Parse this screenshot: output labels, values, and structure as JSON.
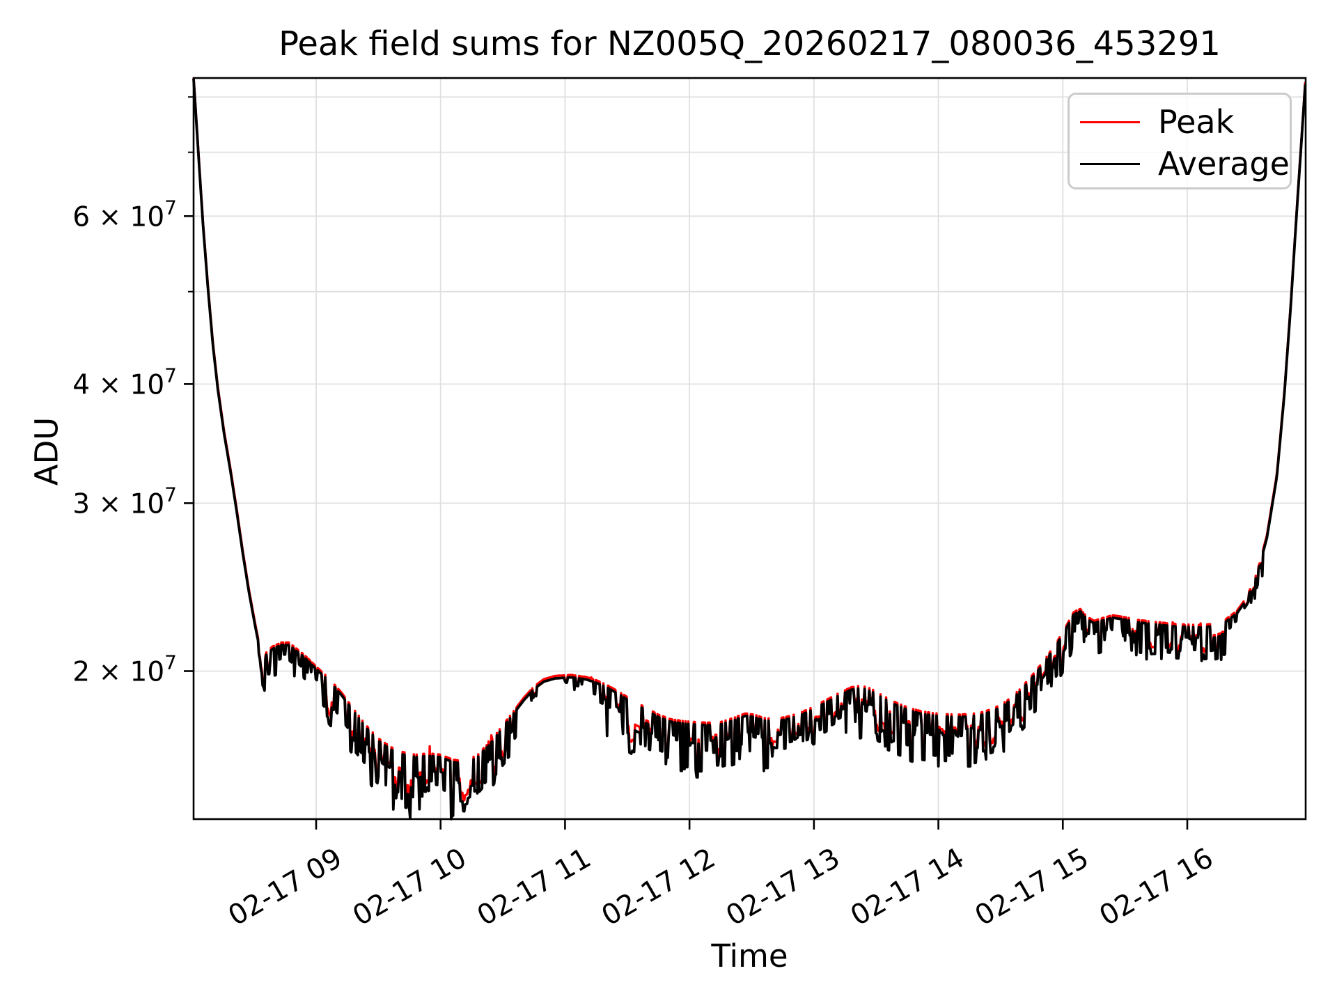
{
  "title": "Peak field sums for NZ005Q_20260217_080036_453291",
  "xlabel": "Time",
  "ylabel": "ADU",
  "legend": {
    "items": [
      {
        "label": "Peak",
        "color": "#ff0000"
      },
      {
        "label": "Average",
        "color": "#000000"
      }
    ]
  },
  "colors": {
    "peak": "#ff0000",
    "average": "#000000",
    "grid": "#e0e0e0",
    "spine": "#000000",
    "background": "#ffffff",
    "legend_border": "#cbcbcb"
  },
  "axes": {
    "x": {
      "start_hour": 8.0152,
      "end_hour": 16.9513,
      "label_rotation_deg": -30,
      "ticks": [
        {
          "hour": 9,
          "label": "02-17 09"
        },
        {
          "hour": 10,
          "label": "02-17 10"
        },
        {
          "hour": 11,
          "label": "02-17 11"
        },
        {
          "hour": 12,
          "label": "02-17 12"
        },
        {
          "hour": 13,
          "label": "02-17 13"
        },
        {
          "hour": 14,
          "label": "02-17 14"
        },
        {
          "hour": 15,
          "label": "02-17 15"
        },
        {
          "hour": 16,
          "label": "02-17 16"
        }
      ]
    },
    "y": {
      "scale": "log",
      "min": 13990000,
      "max": 83750000,
      "major_ticks": [
        {
          "value": 20000000,
          "base": "2 × 10",
          "exp": "7"
        },
        {
          "value": 30000000,
          "base": "3 × 10",
          "exp": "7"
        },
        {
          "value": 40000000,
          "base": "4 × 10",
          "exp": "7"
        },
        {
          "value": 60000000,
          "base": "6 × 10",
          "exp": "7"
        }
      ],
      "minor_tick_values": [
        50000000,
        70000000,
        80000000
      ]
    }
  },
  "chart_data": {
    "type": "line",
    "title": "Peak field sums for NZ005Q_20260217_080036_453291",
    "xlabel": "Time",
    "ylabel": "ADU",
    "x_unit": "time of day on 2026-02-17 (hours)",
    "x_start": "2026-02-17 08:01",
    "x_end": "2026-02-17 16:57",
    "ylim": [
      13990000,
      83750000
    ],
    "grid": "both",
    "legend_position": "upper right",
    "series": [
      {
        "name": "Peak",
        "color": "#ff0000",
        "relation": "upper envelope +0.6%, occasional upward spikes, dips are 78% as deep as Average"
      },
      {
        "name": "Average",
        "color": "#000000",
        "relation": "envelope with frequent narrow downward dips"
      }
    ],
    "envelope_units": "1e7 ADU",
    "envelope_keypoints": [
      [
        8.015,
        8.37
      ],
      [
        8.05,
        7.1
      ],
      [
        8.09,
        5.9
      ],
      [
        8.13,
        5.05
      ],
      [
        8.17,
        4.4
      ],
      [
        8.21,
        3.95
      ],
      [
        8.26,
        3.55
      ],
      [
        8.31,
        3.25
      ],
      [
        8.36,
        2.95
      ],
      [
        8.41,
        2.66
      ],
      [
        8.46,
        2.42
      ],
      [
        8.51,
        2.23
      ],
      [
        8.55,
        2.1
      ],
      [
        8.575,
        2.02
      ],
      [
        8.6,
        2.08
      ],
      [
        8.65,
        2.11
      ],
      [
        8.72,
        2.13
      ],
      [
        8.78,
        2.13
      ],
      [
        8.84,
        2.1
      ],
      [
        8.9,
        2.07
      ],
      [
        8.95,
        2.04
      ],
      [
        9.0,
        2.01
      ],
      [
        9.1,
        1.955
      ],
      [
        9.2,
        1.89
      ],
      [
        9.3,
        1.815
      ],
      [
        9.4,
        1.745
      ],
      [
        9.5,
        1.69
      ],
      [
        9.6,
        1.655
      ],
      [
        9.7,
        1.635
      ],
      [
        9.8,
        1.625
      ],
      [
        9.9,
        1.63
      ],
      [
        10.0,
        1.625
      ],
      [
        10.1,
        1.605
      ],
      [
        10.2,
        1.6
      ],
      [
        10.3,
        1.625
      ],
      [
        10.42,
        1.69
      ],
      [
        10.5,
        1.745
      ],
      [
        10.58,
        1.8
      ],
      [
        10.67,
        1.865
      ],
      [
        10.75,
        1.915
      ],
      [
        10.83,
        1.95
      ],
      [
        10.92,
        1.965
      ],
      [
        11.05,
        1.97
      ],
      [
        11.17,
        1.96
      ],
      [
        11.25,
        1.945
      ],
      [
        11.33,
        1.925
      ],
      [
        11.45,
        1.885
      ],
      [
        11.55,
        1.85
      ],
      [
        11.65,
        1.82
      ],
      [
        11.75,
        1.79
      ],
      [
        11.85,
        1.77
      ],
      [
        11.95,
        1.762
      ],
      [
        12.05,
        1.758
      ],
      [
        12.15,
        1.755
      ],
      [
        12.25,
        1.758
      ],
      [
        12.35,
        1.775
      ],
      [
        12.45,
        1.795
      ],
      [
        12.52,
        1.79
      ],
      [
        12.6,
        1.775
      ],
      [
        12.7,
        1.772
      ],
      [
        12.8,
        1.783
      ],
      [
        12.9,
        1.8
      ],
      [
        13.0,
        1.825
      ],
      [
        13.1,
        1.855
      ],
      [
        13.2,
        1.885
      ],
      [
        13.3,
        1.912
      ],
      [
        13.38,
        1.92
      ],
      [
        13.46,
        1.905
      ],
      [
        13.55,
        1.875
      ],
      [
        13.65,
        1.845
      ],
      [
        13.75,
        1.822
      ],
      [
        13.85,
        1.806
      ],
      [
        13.95,
        1.797
      ],
      [
        14.05,
        1.792
      ],
      [
        14.15,
        1.79
      ],
      [
        14.25,
        1.792
      ],
      [
        14.35,
        1.8
      ],
      [
        14.45,
        1.818
      ],
      [
        14.55,
        1.85
      ],
      [
        14.65,
        1.9
      ],
      [
        14.75,
        1.965
      ],
      [
        14.85,
        2.04
      ],
      [
        14.95,
        2.13
      ],
      [
        15.03,
        2.22
      ],
      [
        15.09,
        2.295
      ],
      [
        15.14,
        2.31
      ],
      [
        15.19,
        2.27
      ],
      [
        15.25,
        2.245
      ],
      [
        15.32,
        2.26
      ],
      [
        15.4,
        2.275
      ],
      [
        15.5,
        2.265
      ],
      [
        15.6,
        2.25
      ],
      [
        15.7,
        2.242
      ],
      [
        15.8,
        2.235
      ],
      [
        15.9,
        2.228
      ],
      [
        16.0,
        2.225
      ],
      [
        16.1,
        2.222
      ],
      [
        16.2,
        2.228
      ],
      [
        16.3,
        2.248
      ],
      [
        16.4,
        2.3
      ],
      [
        16.48,
        2.38
      ],
      [
        16.56,
        2.52
      ],
      [
        16.64,
        2.76
      ],
      [
        16.72,
        3.2
      ],
      [
        16.78,
        3.9
      ],
      [
        16.83,
        4.8
      ],
      [
        16.87,
        5.8
      ],
      [
        16.905,
        6.8
      ],
      [
        16.93,
        7.6
      ],
      [
        16.951,
        8.37
      ]
    ],
    "noise_regions": [
      [
        8.015,
        8.54,
        0,
        0,
        0,
        0
      ],
      [
        8.54,
        9.02,
        0.42,
        0.075,
        0.01,
        0.012
      ],
      [
        9.02,
        9.35,
        0.5,
        0.105,
        0.01,
        0.015
      ],
      [
        9.35,
        10.45,
        0.58,
        0.14,
        0.02,
        0.03
      ],
      [
        10.45,
        10.62,
        0.45,
        0.095,
        0.04,
        0.045
      ],
      [
        10.62,
        11.28,
        0.15,
        0.03,
        0.008,
        0.01
      ],
      [
        11.28,
        12.62,
        0.52,
        0.12,
        0.015,
        0.02
      ],
      [
        12.62,
        13.34,
        0.46,
        0.1,
        0.03,
        0.03
      ],
      [
        13.34,
        14.58,
        0.52,
        0.115,
        0.015,
        0.02
      ],
      [
        14.58,
        15.12,
        0.42,
        0.1,
        0.05,
        0.04
      ],
      [
        15.12,
        16.36,
        0.46,
        0.085,
        0.015,
        0.012
      ],
      [
        16.36,
        16.62,
        0.25,
        0.05,
        0.01,
        0.01
      ],
      [
        16.62,
        16.952,
        0,
        0,
        0,
        0
      ]
    ],
    "sample_step_hours": 0.0075,
    "seed": 42
  }
}
